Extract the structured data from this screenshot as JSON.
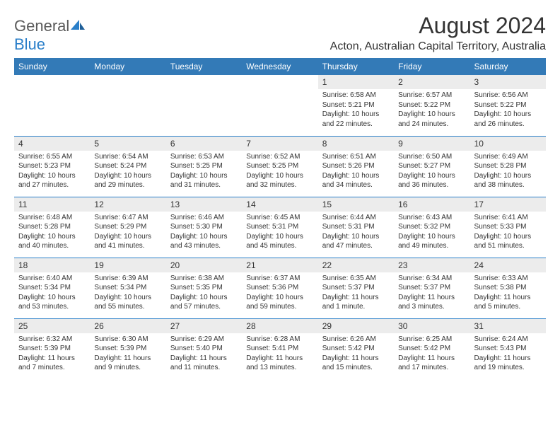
{
  "logo": {
    "text1": "General",
    "text2": "Blue"
  },
  "title": "August 2024",
  "location": "Acton, Australian Capital Territory, Australia",
  "colors": {
    "header_bg": "#337ab7",
    "header_text": "#ffffff",
    "daynum_bg": "#ececec",
    "border": "#2a7fc9",
    "logo_gray": "#5a5a5a",
    "logo_blue": "#2a7fc9"
  },
  "columns": [
    "Sunday",
    "Monday",
    "Tuesday",
    "Wednesday",
    "Thursday",
    "Friday",
    "Saturday"
  ],
  "weeks": [
    [
      {
        "empty": true
      },
      {
        "empty": true
      },
      {
        "empty": true
      },
      {
        "empty": true
      },
      {
        "n": "1",
        "sr": "6:58 AM",
        "ss": "5:21 PM",
        "dl": "10 hours and 22 minutes."
      },
      {
        "n": "2",
        "sr": "6:57 AM",
        "ss": "5:22 PM",
        "dl": "10 hours and 24 minutes."
      },
      {
        "n": "3",
        "sr": "6:56 AM",
        "ss": "5:22 PM",
        "dl": "10 hours and 26 minutes."
      }
    ],
    [
      {
        "n": "4",
        "sr": "6:55 AM",
        "ss": "5:23 PM",
        "dl": "10 hours and 27 minutes."
      },
      {
        "n": "5",
        "sr": "6:54 AM",
        "ss": "5:24 PM",
        "dl": "10 hours and 29 minutes."
      },
      {
        "n": "6",
        "sr": "6:53 AM",
        "ss": "5:25 PM",
        "dl": "10 hours and 31 minutes."
      },
      {
        "n": "7",
        "sr": "6:52 AM",
        "ss": "5:25 PM",
        "dl": "10 hours and 32 minutes."
      },
      {
        "n": "8",
        "sr": "6:51 AM",
        "ss": "5:26 PM",
        "dl": "10 hours and 34 minutes."
      },
      {
        "n": "9",
        "sr": "6:50 AM",
        "ss": "5:27 PM",
        "dl": "10 hours and 36 minutes."
      },
      {
        "n": "10",
        "sr": "6:49 AM",
        "ss": "5:28 PM",
        "dl": "10 hours and 38 minutes."
      }
    ],
    [
      {
        "n": "11",
        "sr": "6:48 AM",
        "ss": "5:28 PM",
        "dl": "10 hours and 40 minutes."
      },
      {
        "n": "12",
        "sr": "6:47 AM",
        "ss": "5:29 PM",
        "dl": "10 hours and 41 minutes."
      },
      {
        "n": "13",
        "sr": "6:46 AM",
        "ss": "5:30 PM",
        "dl": "10 hours and 43 minutes."
      },
      {
        "n": "14",
        "sr": "6:45 AM",
        "ss": "5:31 PM",
        "dl": "10 hours and 45 minutes."
      },
      {
        "n": "15",
        "sr": "6:44 AM",
        "ss": "5:31 PM",
        "dl": "10 hours and 47 minutes."
      },
      {
        "n": "16",
        "sr": "6:43 AM",
        "ss": "5:32 PM",
        "dl": "10 hours and 49 minutes."
      },
      {
        "n": "17",
        "sr": "6:41 AM",
        "ss": "5:33 PM",
        "dl": "10 hours and 51 minutes."
      }
    ],
    [
      {
        "n": "18",
        "sr": "6:40 AM",
        "ss": "5:34 PM",
        "dl": "10 hours and 53 minutes."
      },
      {
        "n": "19",
        "sr": "6:39 AM",
        "ss": "5:34 PM",
        "dl": "10 hours and 55 minutes."
      },
      {
        "n": "20",
        "sr": "6:38 AM",
        "ss": "5:35 PM",
        "dl": "10 hours and 57 minutes."
      },
      {
        "n": "21",
        "sr": "6:37 AM",
        "ss": "5:36 PM",
        "dl": "10 hours and 59 minutes."
      },
      {
        "n": "22",
        "sr": "6:35 AM",
        "ss": "5:37 PM",
        "dl": "11 hours and 1 minute."
      },
      {
        "n": "23",
        "sr": "6:34 AM",
        "ss": "5:37 PM",
        "dl": "11 hours and 3 minutes."
      },
      {
        "n": "24",
        "sr": "6:33 AM",
        "ss": "5:38 PM",
        "dl": "11 hours and 5 minutes."
      }
    ],
    [
      {
        "n": "25",
        "sr": "6:32 AM",
        "ss": "5:39 PM",
        "dl": "11 hours and 7 minutes."
      },
      {
        "n": "26",
        "sr": "6:30 AM",
        "ss": "5:39 PM",
        "dl": "11 hours and 9 minutes."
      },
      {
        "n": "27",
        "sr": "6:29 AM",
        "ss": "5:40 PM",
        "dl": "11 hours and 11 minutes."
      },
      {
        "n": "28",
        "sr": "6:28 AM",
        "ss": "5:41 PM",
        "dl": "11 hours and 13 minutes."
      },
      {
        "n": "29",
        "sr": "6:26 AM",
        "ss": "5:42 PM",
        "dl": "11 hours and 15 minutes."
      },
      {
        "n": "30",
        "sr": "6:25 AM",
        "ss": "5:42 PM",
        "dl": "11 hours and 17 minutes."
      },
      {
        "n": "31",
        "sr": "6:24 AM",
        "ss": "5:43 PM",
        "dl": "11 hours and 19 minutes."
      }
    ]
  ],
  "labels": {
    "sunrise": "Sunrise:",
    "sunset": "Sunset:",
    "daylight": "Daylight:"
  }
}
